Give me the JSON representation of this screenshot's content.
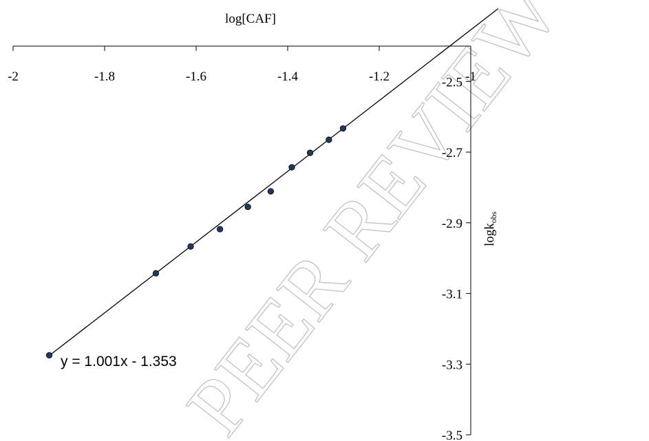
{
  "chart_data": {
    "type": "scatter",
    "title": "",
    "xlabel": "log[CAF]",
    "ylabel_main": "logk",
    "ylabel_sub": "obs",
    "xlim": [
      -2,
      -1
    ],
    "ylim": [
      -3.5,
      -2.4
    ],
    "x_ticks": [
      -2,
      -1.8,
      -1.6,
      -1.4,
      -1.2,
      -1
    ],
    "x_tick_labels": [
      "-2",
      "-1.8",
      "-1.6",
      "-1.4",
      "-1.2",
      "-1"
    ],
    "y_ticks": [
      -2.5,
      -2.7,
      -2.9,
      -3.1,
      -3.3,
      -3.5
    ],
    "y_tick_labels": [
      "-2.5",
      "-2.7",
      "-2.9",
      "-3.1",
      "-3.3",
      "-3.5"
    ],
    "x_axis_position": "top",
    "y_axis_position": "right",
    "grid": false,
    "points": [
      {
        "x": -1.921,
        "y": -3.275
      },
      {
        "x": -1.688,
        "y": -3.043
      },
      {
        "x": -1.612,
        "y": -2.967
      },
      {
        "x": -1.548,
        "y": -2.918
      },
      {
        "x": -1.487,
        "y": -2.855
      },
      {
        "x": -1.437,
        "y": -2.811
      },
      {
        "x": -1.391,
        "y": -2.743
      },
      {
        "x": -1.351,
        "y": -2.702
      },
      {
        "x": -1.31,
        "y": -2.665
      },
      {
        "x": -1.279,
        "y": -2.633
      }
    ],
    "trendline": {
      "slope": 1.001,
      "intercept": -1.353,
      "x_range": [
        -1.921,
        -0.94
      ]
    },
    "equation_label": "y = 1.001x - 1.353",
    "marker_color": "#1f3864",
    "line_color": "#000000"
  },
  "watermark": "PEER REVIEW"
}
